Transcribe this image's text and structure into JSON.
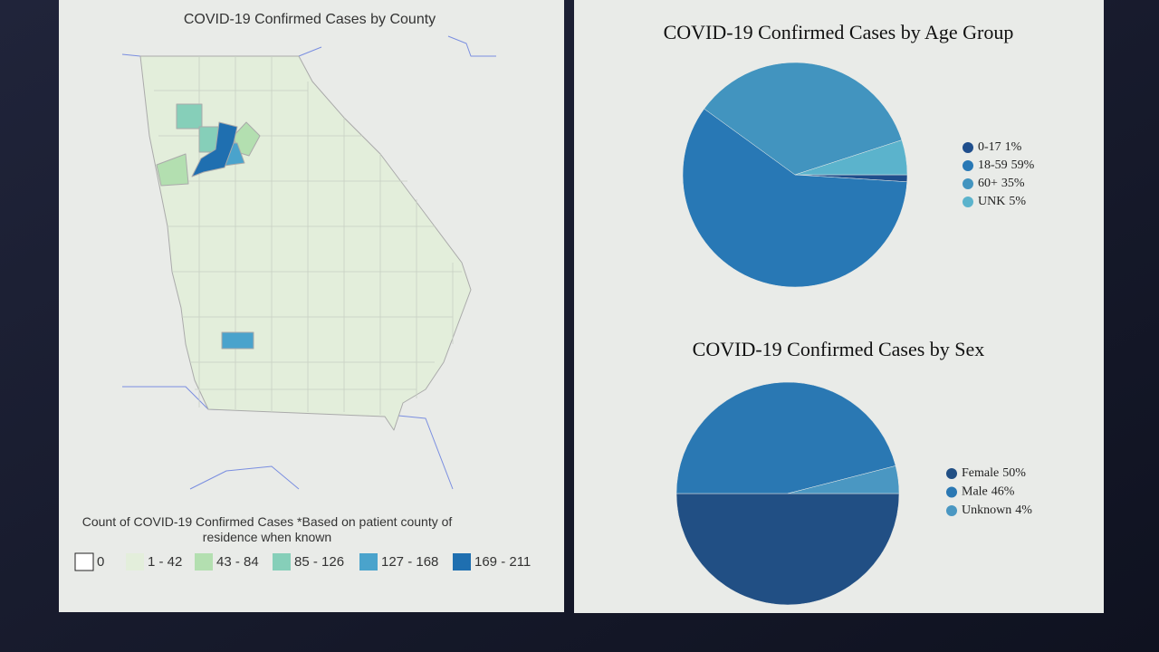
{
  "chart_data": [
    {
      "type": "map",
      "title": "COVID-19 Confirmed Cases by County",
      "legend_title": "Count of COVID-19 Confirmed Cases *Based on patient county of residence when known",
      "legend": [
        {
          "label": "0",
          "color": "#ffffff"
        },
        {
          "label": "1 - 42",
          "color": "#e3eedb"
        },
        {
          "label": "43 - 84",
          "color": "#b3dfb0"
        },
        {
          "label": "85 - 126",
          "color": "#86cfb9"
        },
        {
          "label": "127 - 168",
          "color": "#4aa3cc"
        },
        {
          "label": "169 - 211",
          "color": "#1f6fb0"
        }
      ]
    },
    {
      "type": "pie",
      "title": "COVID-19 Confirmed Cases by Age Group",
      "categories": [
        "0-17",
        "18-59",
        "60+",
        "UNK"
      ],
      "values": [
        1,
        59,
        35,
        5
      ],
      "value_labels": [
        "1%",
        "59%",
        "35%",
        "5%"
      ],
      "colors": [
        "#1f4e8c",
        "#2878b5",
        "#4294bf",
        "#5bb3cc"
      ]
    },
    {
      "type": "pie",
      "title": "COVID-19 Confirmed Cases by Sex",
      "categories": [
        "Female",
        "Male",
        "Unknown"
      ],
      "values": [
        50,
        46,
        4
      ],
      "value_labels": [
        "50%",
        "46%",
        "4%"
      ],
      "colors": [
        "#214f84",
        "#2a78b3",
        "#4a97c2"
      ]
    }
  ]
}
